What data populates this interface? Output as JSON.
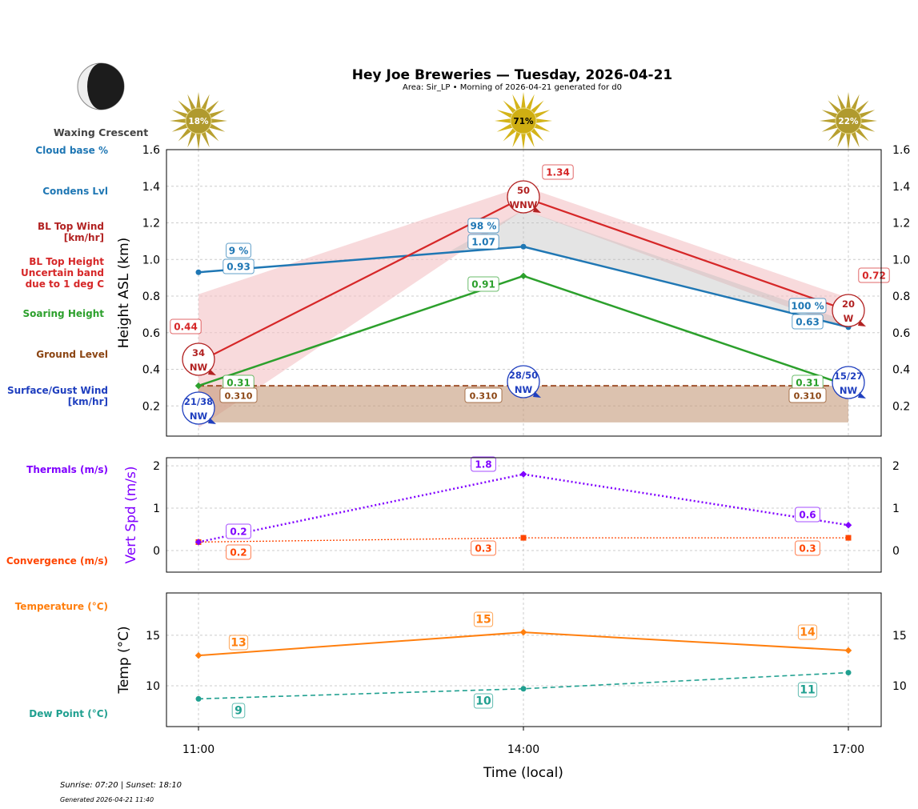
{
  "title": "Hey Joe Breweries — Tuesday, 2026-04-21",
  "subtitle": "Area: Sir_LP • Morning of 2026-04-21 generated for d0",
  "moon": {
    "phase": "Waxing Crescent",
    "icon": "waxing-crescent-moon-icon"
  },
  "sun_cover": [
    "18%",
    "71%",
    "22%"
  ],
  "footer": {
    "sun": "Sunrise: 07:20 | Sunset: 18:10",
    "generated": "Generated 2026-04-21 11:40"
  },
  "chart_data": [
    {
      "type": "line",
      "ylabel": "Height ASL (km)",
      "xlabel": "",
      "ylim": [
        0.035,
        1.6
      ],
      "yticks": [
        0.2,
        0.4,
        0.6,
        0.8,
        1.0,
        1.2,
        1.4,
        1.6
      ],
      "grid": true,
      "x": [
        "11:00",
        "14:00",
        "17:00"
      ],
      "row_labels": [
        {
          "text": "Cloud base %",
          "color": "#1f77b4"
        },
        {
          "text": "Condens Lvl",
          "color": "#1f77b4"
        },
        {
          "text": "BL Top Wind\n[km/hr]",
          "color": "#b22222"
        },
        {
          "text": "BL Top Height\nUncertain band\ndue to 1 deg C",
          "color": "#d62728"
        },
        {
          "text": "Soaring Height",
          "color": "#2ca02c"
        },
        {
          "text": "Ground Level",
          "color": "#8b4513"
        },
        {
          "text": "Surface/Gust Wind\n[km/hr]",
          "color": "#1f3fbf"
        }
      ],
      "series": {
        "bl_top": {
          "values": [
            0.44,
            1.34,
            0.72
          ],
          "labels": [
            "0.44",
            "1.34",
            "0.72"
          ],
          "color": "#d62728"
        },
        "bl_band": {
          "lower": [
            0.08,
            1.27,
            0.62
          ],
          "upper": [
            0.81,
            1.4,
            0.79
          ],
          "color": "#f4c2c4"
        },
        "condens": {
          "values": [
            0.93,
            1.07,
            0.63
          ],
          "labels": [
            "0.93",
            "1.07",
            "0.63"
          ],
          "cloud_pct": [
            "9 %",
            "98 %",
            "100 %"
          ],
          "color": "#1f77b4"
        },
        "soaring": {
          "values": [
            0.31,
            0.91,
            0.31
          ],
          "labels": [
            "0.31",
            "0.91",
            "0.31"
          ],
          "color": "#2ca02c"
        },
        "ground": {
          "values": [
            0.31,
            0.31,
            0.31
          ],
          "base": 0.11,
          "labels": [
            "0.310",
            "0.310",
            "0.310"
          ],
          "color": "#8b4513"
        },
        "bl_wind": {
          "speed": [
            "34",
            "50",
            "20"
          ],
          "dir": [
            "NW",
            "WNW",
            "W"
          ],
          "color": "#b22222"
        },
        "surface_wind": {
          "speed": [
            "21/38",
            "28/50",
            "15/27"
          ],
          "dir": [
            "NW",
            "NW",
            "NW"
          ],
          "color": "#1f3fbf"
        }
      }
    },
    {
      "type": "line",
      "ylabel": "Vert Spd (m/s)",
      "ylim": [
        -0.51,
        2.19
      ],
      "yticks": [
        0,
        1,
        2
      ],
      "grid": true,
      "row_labels": [
        {
          "text": "Thermals (m/s)",
          "color": "#8000ff"
        },
        {
          "text": "Convergence (m/s)",
          "color": "#ff4500"
        }
      ],
      "series": {
        "thermals": {
          "values": [
            0.2,
            1.8,
            0.6
          ],
          "labels": [
            "0.2",
            "1.8",
            "0.6"
          ],
          "color": "#8000ff"
        },
        "convergence": {
          "values": [
            0.2,
            0.3,
            0.3
          ],
          "labels": [
            "0.2",
            "0.3",
            "0.3"
          ],
          "color": "#ff4500"
        }
      }
    },
    {
      "type": "line",
      "ylabel": "Temp (°C)",
      "xlabel": "Time (local)",
      "ylim": [
        5.95,
        19.2
      ],
      "yticks": [
        10,
        15
      ],
      "grid": true,
      "row_labels": [
        {
          "text": "Temperature (°C)",
          "color": "#ff7f0e"
        },
        {
          "text": "Dew Point (°C)",
          "color": "#20a090"
        }
      ],
      "series": {
        "temperature": {
          "values": [
            13,
            15.3,
            13.5
          ],
          "labels": [
            "13",
            "15",
            "14"
          ],
          "color": "#ff7f0e"
        },
        "dew_point": {
          "values": [
            8.7,
            9.7,
            11.3
          ],
          "labels": [
            "9",
            "10",
            "11"
          ],
          "color": "#20a090"
        }
      }
    }
  ]
}
